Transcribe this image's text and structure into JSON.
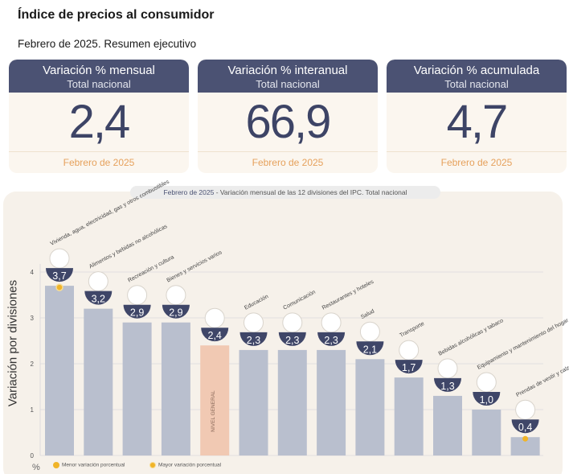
{
  "header": {
    "title": "Índice de precios al consumidor",
    "subtitle": "Febrero de 2025. Resumen ejecutivo"
  },
  "cards": [
    {
      "title": "Variación % mensual",
      "subtitle": "Total nacional",
      "value": "2,4",
      "footer": "Febrero de 2025"
    },
    {
      "title": "Variación % interanual",
      "subtitle": "Total nacional",
      "value": "66,9",
      "footer": "Febrero de 2025"
    },
    {
      "title": "Variación % acumulada",
      "subtitle": "Total nacional",
      "value": "4,7",
      "footer": "Febrero de 2025"
    }
  ],
  "chart_title": {
    "prefix": "Febrero de 2025",
    "text": " - Variación mensual de las 12 divisiones del IPC. Total nacional"
  },
  "legend": {
    "min": "Menor variación porcentual",
    "max": "Mayor variación porcentual"
  },
  "colors": {
    "bar": "#b9bfce",
    "bar_general": "#f1c9b3",
    "badge": "#3f4668",
    "marker": "#f0b429",
    "card_head": "#4b5273"
  },
  "chart_data": {
    "type": "bar",
    "ylabel": "Variación por divisiones",
    "yunit": "%",
    "ylim": [
      0,
      4
    ],
    "yticks": [
      0,
      1,
      2,
      3,
      4
    ],
    "grid": true,
    "categories": [
      "Vivienda, agua, electricidad, gas y otros combustibles",
      "Alimentos y bebidas no alcohólicas",
      "Recreación y cultura",
      "Bienes y servicios varios",
      "NIVEL GENERAL",
      "Educación",
      "Comunicación",
      "Restaurantes y hoteles",
      "Salud",
      "Transporte",
      "Bebidas alcohólicas y tabaco",
      "Equipamiento y mantenimiento del hogar",
      "Prendas de vestir y calzado"
    ],
    "values": [
      3.7,
      3.2,
      2.9,
      2.9,
      2.4,
      2.3,
      2.3,
      2.3,
      2.1,
      1.7,
      1.3,
      1.0,
      0.4
    ],
    "value_labels": [
      "3,7",
      "3,2",
      "2,9",
      "2,9",
      "2,4",
      "2,3",
      "2,3",
      "2,3",
      "2,1",
      "1,7",
      "1,3",
      "1,0",
      "0,4"
    ],
    "highlight_general_index": 4,
    "max_index": 0,
    "min_index": 12,
    "icons": [
      "lightbulb-icon",
      "food-basket-icon",
      "beach-umbrella-icon",
      "brushes-icon",
      "shopping-cart-icon",
      "notebook-icon",
      "mobile-phone-icon",
      "cutlery-icon",
      "first-aid-icon",
      "bus-icon",
      "wine-bottle-icon",
      "air-conditioner-icon",
      "t-shirt-icon"
    ]
  }
}
